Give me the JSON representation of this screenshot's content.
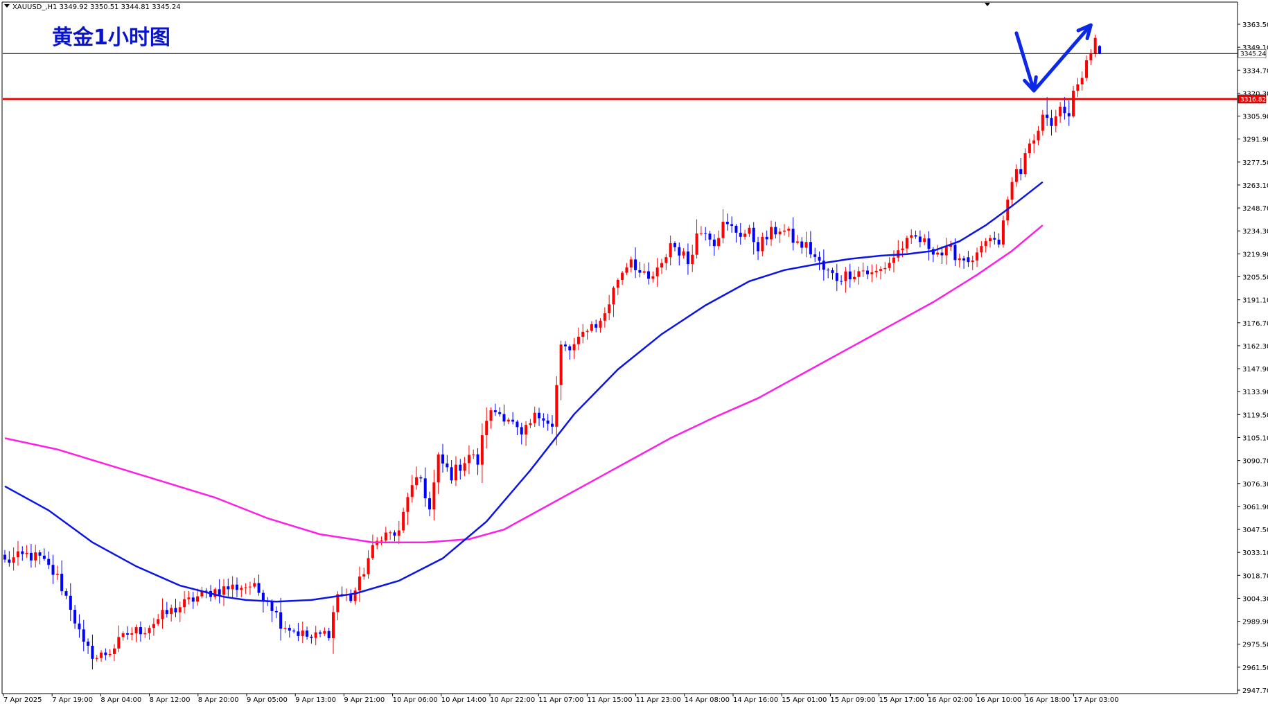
{
  "window": {
    "symbol_info": "XAUUSD_,H1  3349.92 3350.51 3344.81 3345.24"
  },
  "chart_data": {
    "type": "candlestick",
    "title": "黄金1小时图",
    "symbol": "XAUUSD_",
    "timeframe": "H1",
    "ohlc_current": {
      "open": 3349.92,
      "high": 3350.51,
      "low": 3344.81,
      "close": 3345.24
    },
    "ylim": [
      2947.7,
      3368.0
    ],
    "y_ticks": [
      "3363.50",
      "3349.10",
      "3334.70",
      "3320.30",
      "3305.90",
      "3291.90",
      "3277.50",
      "3263.10",
      "3248.70",
      "3234.30",
      "3219.90",
      "3205.50",
      "3191.10",
      "3176.70",
      "3162.30",
      "3147.90",
      "3133.90",
      "3119.50",
      "3105.10",
      "3090.70",
      "3076.30",
      "3061.90",
      "3047.50",
      "3033.10",
      "3018.70",
      "3004.30",
      "2989.90",
      "2975.50",
      "2961.50",
      "2947.70"
    ],
    "x_ticks": [
      "7 Apr 2025",
      "7 Apr 19:00",
      "8 Apr 04:00",
      "8 Apr 12:00",
      "8 Apr 20:00",
      "9 Apr 05:00",
      "9 Apr 13:00",
      "9 Apr 21:00",
      "10 Apr 06:00",
      "10 Apr 14:00",
      "10 Apr 22:00",
      "11 Apr 07:00",
      "11 Apr 15:00",
      "11 Apr 23:00",
      "14 Apr 08:00",
      "14 Apr 16:00",
      "15 Apr 01:00",
      "15 Apr 09:00",
      "15 Apr 17:00",
      "16 Apr 02:00",
      "16 Apr 10:00",
      "16 Apr 18:00",
      "17 Apr 03:00"
    ],
    "bar_count": 220,
    "current_price": {
      "value": 3345.24,
      "label": "3345.24"
    },
    "horizontal_level": {
      "value": 3316.82,
      "label": "3316.82",
      "color": "#ff0000"
    },
    "colors": {
      "bull": "#ff0000",
      "bear": "#0000ff",
      "ma_fast": "#0a14e6",
      "ma_slow": "#ff1ee6",
      "arrows": "#0a28e6",
      "current_line": "#000000"
    },
    "close_anchors": [
      [
        0,
        3028
      ],
      [
        5,
        3032
      ],
      [
        8,
        3030
      ],
      [
        12,
        3018
      ],
      [
        15,
        3000
      ],
      [
        18,
        2975
      ],
      [
        21,
        2968
      ],
      [
        24,
        2972
      ],
      [
        28,
        2983
      ],
      [
        32,
        2986
      ],
      [
        36,
        2994
      ],
      [
        40,
        3000
      ],
      [
        44,
        3006
      ],
      [
        48,
        3010
      ],
      [
        52,
        3012
      ],
      [
        56,
        3013
      ],
      [
        60,
        3005
      ],
      [
        63,
        2990
      ],
      [
        66,
        2985
      ],
      [
        70,
        2980
      ],
      [
        74,
        2984
      ],
      [
        76,
        3008
      ],
      [
        79,
        3005
      ],
      [
        81,
        3015
      ],
      [
        83,
        3030
      ],
      [
        86,
        3045
      ],
      [
        90,
        3045
      ],
      [
        92,
        3070
      ],
      [
        95,
        3080
      ],
      [
        97,
        3060
      ],
      [
        99,
        3092
      ],
      [
        102,
        3082
      ],
      [
        104,
        3088
      ],
      [
        106,
        3095
      ],
      [
        108,
        3090
      ],
      [
        110,
        3118
      ],
      [
        112,
        3122
      ],
      [
        115,
        3118
      ],
      [
        118,
        3105
      ],
      [
        121,
        3118
      ],
      [
        123,
        3120
      ],
      [
        125,
        3112
      ],
      [
        127,
        3162
      ],
      [
        129,
        3160
      ],
      [
        131,
        3165
      ],
      [
        133,
        3175
      ],
      [
        136,
        3177
      ],
      [
        138,
        3190
      ],
      [
        140,
        3205
      ],
      [
        143,
        3218
      ],
      [
        145,
        3208
      ],
      [
        147,
        3203
      ],
      [
        150,
        3212
      ],
      [
        152,
        3227
      ],
      [
        154,
        3222
      ],
      [
        156,
        3215
      ],
      [
        158,
        3232
      ],
      [
        160,
        3236
      ],
      [
        162,
        3228
      ],
      [
        164,
        3238
      ],
      [
        166,
        3236
      ],
      [
        168,
        3233
      ],
      [
        170,
        3233
      ],
      [
        172,
        3225
      ],
      [
        175,
        3233
      ],
      [
        177,
        3236
      ],
      [
        179,
        3232
      ],
      [
        181,
        3226
      ],
      [
        183,
        3225
      ],
      [
        185,
        3218
      ],
      [
        187,
        3210
      ],
      [
        190,
        3205
      ],
      [
        193,
        3208
      ],
      [
        196,
        3210
      ],
      [
        198,
        3207
      ],
      [
        200,
        3210
      ],
      [
        202,
        3215
      ],
      [
        205,
        3225
      ],
      [
        208,
        3230
      ],
      [
        211,
        3225
      ],
      [
        214,
        3220
      ],
      [
        216,
        3222
      ],
      [
        219,
        3216
      ]
    ],
    "bars_tail": [
      [
        3218,
        3222,
        3212,
        3215
      ],
      [
        3215,
        3219,
        3210,
        3216
      ],
      [
        3216,
        3224,
        3212,
        3221
      ],
      [
        3221,
        3228,
        3218,
        3225
      ],
      [
        3225,
        3230,
        3221,
        3228
      ],
      [
        3228,
        3232,
        3224,
        3230
      ],
      [
        3230,
        3234,
        3226,
        3229
      ],
      [
        3229,
        3233,
        3224,
        3226
      ],
      [
        3226,
        3244,
        3224,
        3241
      ],
      [
        3241,
        3256,
        3238,
        3254
      ],
      [
        3254,
        3268,
        3250,
        3265
      ],
      [
        3265,
        3276,
        3262,
        3273
      ],
      [
        3273,
        3280,
        3266,
        3270
      ],
      [
        3270,
        3286,
        3268,
        3283
      ],
      [
        3283,
        3292,
        3280,
        3289
      ],
      [
        3289,
        3295,
        3283,
        3291
      ],
      [
        3291,
        3300,
        3288,
        3297
      ],
      [
        3297,
        3310,
        3294,
        3307
      ],
      [
        3307,
        3318,
        3300,
        3305
      ],
      [
        3305,
        3310,
        3294,
        3300
      ],
      [
        3300,
        3310,
        3296,
        3306
      ],
      [
        3306,
        3315,
        3302,
        3312
      ],
      [
        3312,
        3318,
        3304,
        3308
      ],
      [
        3308,
        3316,
        3300,
        3306
      ],
      [
        3306,
        3325,
        3305,
        3322
      ],
      [
        3322,
        3330,
        3318,
        3326
      ],
      [
        3326,
        3334,
        3322,
        3330
      ],
      [
        3330,
        3344,
        3328,
        3341
      ],
      [
        3341,
        3348,
        3338,
        3345
      ],
      [
        3345,
        3357,
        3343,
        3355
      ],
      [
        3349.92,
        3350.51,
        3344.81,
        3345.24
      ]
    ],
    "ma_fast": [
      [
        0,
        3075
      ],
      [
        10,
        3060
      ],
      [
        20,
        3040
      ],
      [
        30,
        3025
      ],
      [
        40,
        3013
      ],
      [
        50,
        3006
      ],
      [
        55,
        3004
      ],
      [
        62,
        3003
      ],
      [
        70,
        3004
      ],
      [
        80,
        3008
      ],
      [
        90,
        3016
      ],
      [
        100,
        3030
      ],
      [
        110,
        3053
      ],
      [
        120,
        3085
      ],
      [
        130,
        3120
      ],
      [
        140,
        3148
      ],
      [
        150,
        3170
      ],
      [
        160,
        3188
      ],
      [
        170,
        3203
      ],
      [
        178,
        3210
      ],
      [
        186,
        3214
      ],
      [
        193,
        3217
      ],
      [
        200,
        3219
      ],
      [
        206,
        3220
      ],
      [
        212,
        3222
      ],
      [
        218,
        3228
      ],
      [
        224,
        3238
      ],
      [
        230,
        3250
      ],
      [
        237,
        3265
      ]
    ],
    "ma_slow": [
      [
        0,
        3105
      ],
      [
        12,
        3098
      ],
      [
        24,
        3088
      ],
      [
        36,
        3078
      ],
      [
        48,
        3068
      ],
      [
        60,
        3055
      ],
      [
        72,
        3045
      ],
      [
        84,
        3040
      ],
      [
        96,
        3040
      ],
      [
        106,
        3042
      ],
      [
        114,
        3048
      ],
      [
        122,
        3060
      ],
      [
        132,
        3075
      ],
      [
        142,
        3090
      ],
      [
        152,
        3105
      ],
      [
        162,
        3118
      ],
      [
        172,
        3130
      ],
      [
        182,
        3145
      ],
      [
        192,
        3160
      ],
      [
        202,
        3175
      ],
      [
        212,
        3190
      ],
      [
        222,
        3207
      ],
      [
        230,
        3222
      ],
      [
        237,
        3238
      ]
    ],
    "arrows": [
      {
        "from": [
          231,
          3358
        ],
        "to": [
          235,
          3322
        ]
      },
      {
        "from": [
          235,
          3322
        ],
        "to": [
          248,
          3363
        ]
      }
    ]
  }
}
